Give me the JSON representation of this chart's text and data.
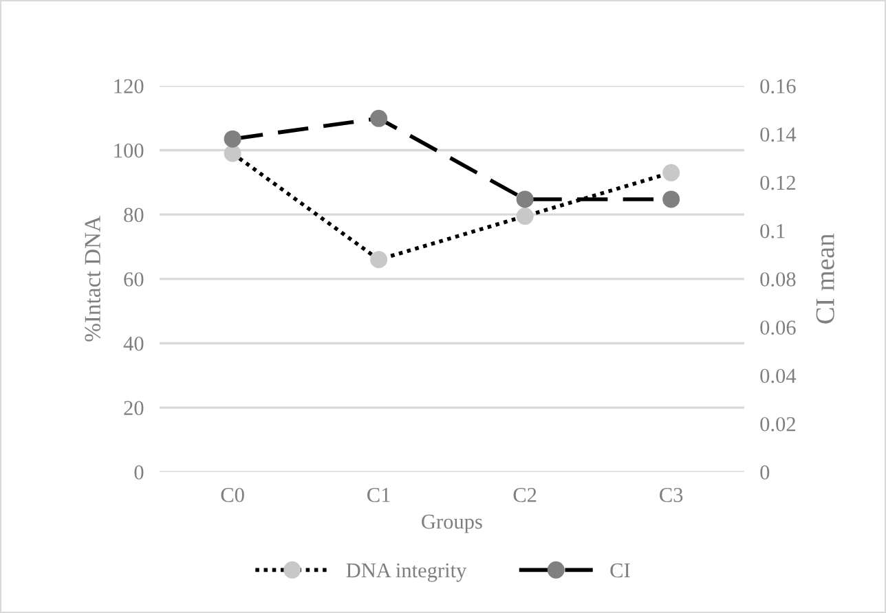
{
  "chart_data": {
    "type": "line",
    "xlabel": "Groups",
    "ylabel": "%Intact DNA",
    "y2label": "CI mean",
    "categories": [
      "C0",
      "C1",
      "C2",
      "C3"
    ],
    "series": [
      {
        "name": "DNA integrity",
        "color": "#c8c8c8",
        "values": [
          99,
          66,
          79.5,
          93
        ],
        "line_style": "dotted"
      },
      {
        "name": "CI",
        "color": "#808080",
        "values": [
          0.138,
          0.1465,
          0.113,
          0.113
        ],
        "axis": "y2",
        "line_style": "dashed"
      }
    ],
    "ylim": [
      0,
      120
    ],
    "yticks": [
      0,
      20,
      40,
      60,
      80,
      100,
      120
    ],
    "y2lim": [
      0,
      0.16
    ],
    "y2ticks": [
      {
        "value": 0,
        "label": "0"
      },
      {
        "value": 0.02,
        "label": "0.02"
      },
      {
        "value": 0.04,
        "label": "0.04"
      },
      {
        "value": 0.06,
        "label": "0.06"
      },
      {
        "value": 0.08,
        "label": "0.08"
      },
      {
        "value": 0.1,
        "label": "0.1"
      },
      {
        "value": 0.12,
        "label": "0.12"
      },
      {
        "value": 0.14,
        "label": "0.14"
      },
      {
        "value": 0.16,
        "label": "0.16"
      }
    ],
    "grid": "y",
    "legend": "bottom",
    "marker": "circle"
  }
}
